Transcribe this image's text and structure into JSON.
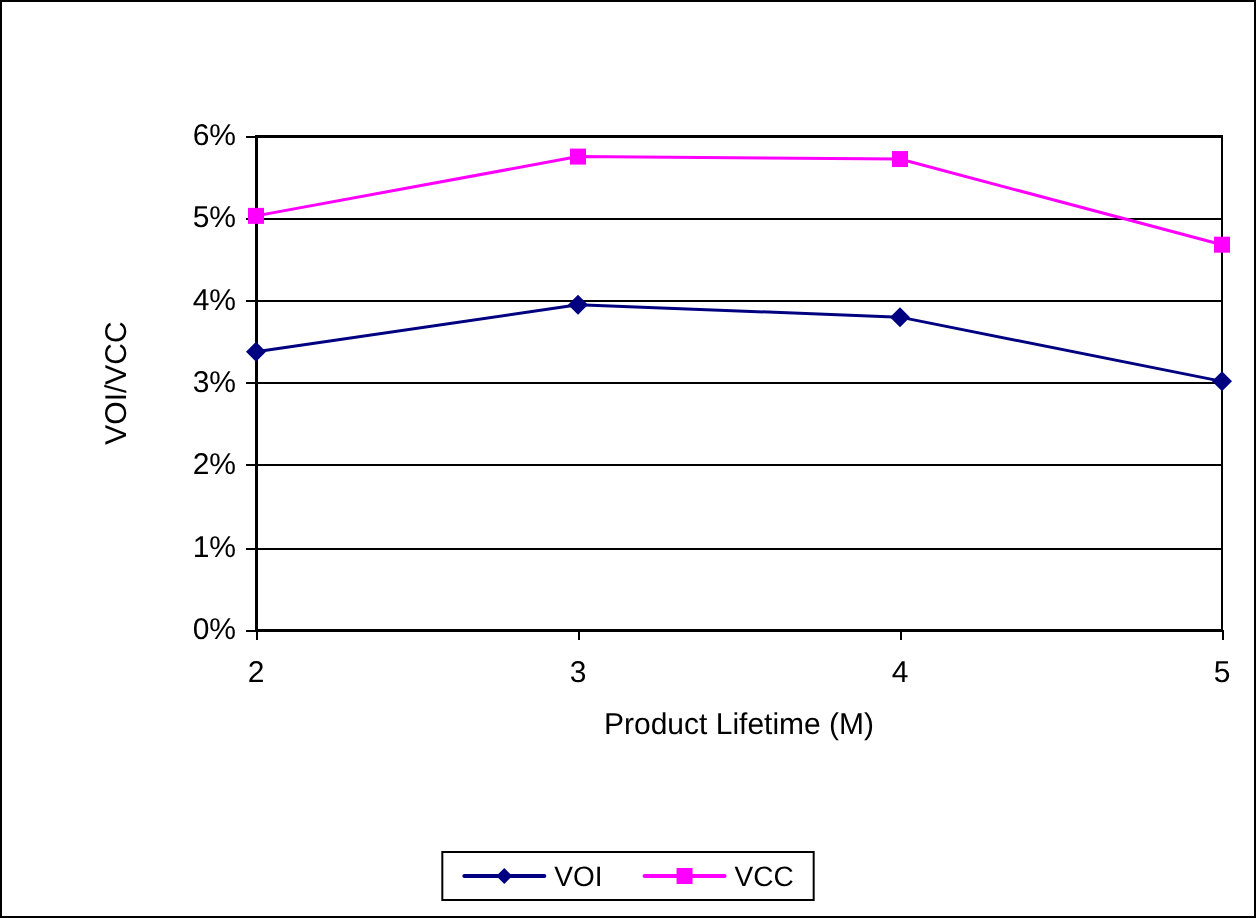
{
  "chart_data": {
    "type": "line",
    "xlabel": "Product Lifetime (M)",
    "ylabel": "VOI/VCC",
    "x": [
      2,
      3,
      4,
      5
    ],
    "xlim": [
      2,
      5
    ],
    "xticks": [
      2,
      3,
      4,
      5
    ],
    "ylim": [
      0,
      6
    ],
    "yticks": [
      {
        "value": 0,
        "label": "0%"
      },
      {
        "value": 1,
        "label": "1%"
      },
      {
        "value": 2,
        "label": "2%"
      },
      {
        "value": 3,
        "label": "3%"
      },
      {
        "value": 4,
        "label": "4%"
      },
      {
        "value": 5,
        "label": "5%"
      },
      {
        "value": 6,
        "label": "6%"
      }
    ],
    "series": [
      {
        "name": "VOI",
        "color": "#000080",
        "marker": "diamond",
        "values": [
          3.38,
          3.95,
          3.8,
          3.02
        ]
      },
      {
        "name": "VCC",
        "color": "#ff00ff",
        "marker": "square",
        "values": [
          5.03,
          5.75,
          5.72,
          4.68
        ]
      }
    ],
    "grid": "y",
    "legend": "bottom",
    "line_style": "solid"
  }
}
